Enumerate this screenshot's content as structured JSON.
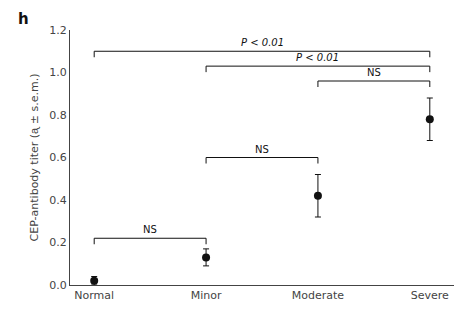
{
  "chart_data": {
    "type": "scatter",
    "panel_label": "h",
    "categories": [
      "Normal",
      "Minor",
      "Moderate",
      "Severe"
    ],
    "values": [
      0.02,
      0.13,
      0.42,
      0.78
    ],
    "errors": [
      0.02,
      0.04,
      0.1,
      0.1
    ],
    "color": "#111111",
    "marker": "circle",
    "ylabel": "CEP-antibody titer (ᶏ ± s.e.m.)",
    "ylim": [
      0,
      1.2
    ],
    "yticks": [
      {
        "value": 0,
        "label": "0.0"
      },
      0.2,
      0.4,
      0.6,
      0.8,
      {
        "value": 1,
        "label": "1.0"
      },
      1.2
    ],
    "grid": false,
    "brackets": [
      {
        "from": "Normal",
        "to": "Minor",
        "y": 0.22,
        "label": "NS"
      },
      {
        "from": "Minor",
        "to": "Moderate",
        "y": 0.6,
        "label": "NS"
      },
      {
        "from": "Moderate",
        "to": "Severe",
        "y": 0.96,
        "label": "NS"
      },
      {
        "from": "Normal",
        "to": "Severe",
        "y": 1.1,
        "label": "P < 0.01"
      },
      {
        "from": "Minor",
        "to": "Severe",
        "y": 1.03,
        "label": "P < 0.01"
      }
    ]
  }
}
